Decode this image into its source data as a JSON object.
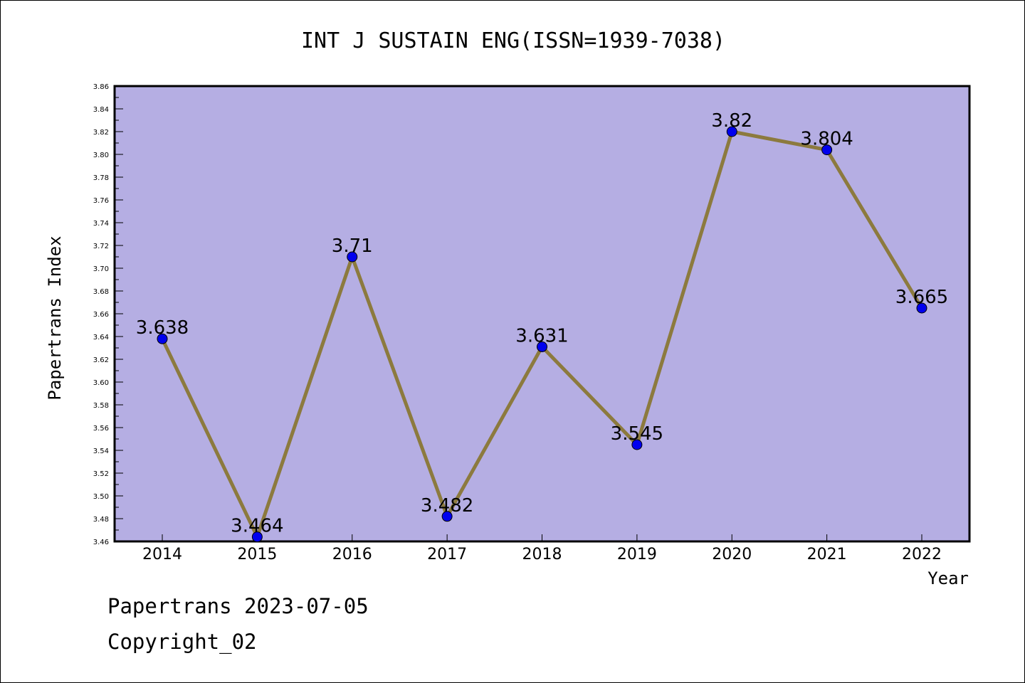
{
  "chart_data": {
    "type": "line",
    "title": "INT J SUSTAIN ENG(ISSN=1939-7038)",
    "xlabel": "Year",
    "ylabel": "Papertrans Index",
    "categories": [
      "2014",
      "2015",
      "2016",
      "2017",
      "2018",
      "2019",
      "2020",
      "2021",
      "2022"
    ],
    "series": [
      {
        "values": [
          3.638,
          3.464,
          3.71,
          3.482,
          3.631,
          3.545,
          3.82,
          3.804,
          3.665
        ]
      }
    ],
    "data_labels": [
      "3.638",
      "3.464",
      "3.71",
      "3.482",
      "3.631",
      "3.545",
      "3.82",
      "3.804",
      "3.665"
    ],
    "ylim": [
      3.46,
      3.86
    ],
    "yticks": [
      "3.46",
      "3.48",
      "3.50",
      "3.52",
      "3.54",
      "3.56",
      "3.58",
      "3.60",
      "3.62",
      "3.64",
      "3.66",
      "3.68",
      "3.70",
      "3.72",
      "3.74",
      "3.76",
      "3.78",
      "3.80",
      "3.82",
      "3.84",
      "3.86"
    ],
    "grid": false,
    "legend": "none",
    "colors": {
      "plot_background": "#b5aee3",
      "line": "#8c7a3e",
      "marker": "#0000ee",
      "axis": "#000000"
    }
  },
  "footer": {
    "date_line": "Papertrans 2023-07-05",
    "copyright": "Copyright_02"
  }
}
